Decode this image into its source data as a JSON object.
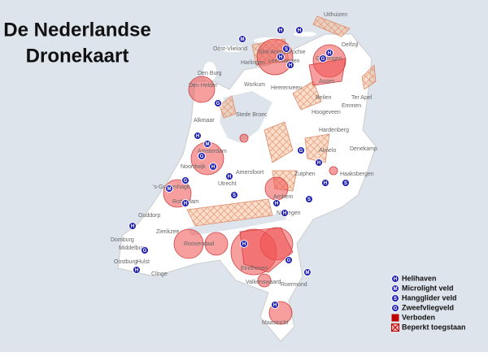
{
  "header": {
    "title": [
      "De Nederlandse",
      "Dronekaart"
    ]
  },
  "cities": [
    "Uithuizen",
    "Delfzijl",
    "Oost-Vlieland",
    "Sint-Annaparochie",
    "Harlingen",
    "Leeuwarden",
    "Groningen",
    "Den Burg",
    "Den Helder",
    "Workum",
    "Heerenveen",
    "Assen",
    "Beilen",
    "Ter Apel",
    "Emmen",
    "Hoogeveen",
    "Alkmaar",
    "Stede Broec",
    "Hardenberg",
    "Almelo",
    "Denekamp",
    "Amsterdam",
    "Noordwijk",
    "Amersfoort",
    "Zutphen",
    "Haaksbergen",
    "Utrecht",
    "'s-Gravenhage",
    "Rotterdam",
    "Arnhem",
    "Nijmegen",
    "Ouddorp",
    "Zierikzee",
    "Domburg",
    "Middelburg",
    "Roosendaal",
    "Oostburg",
    "Hulst",
    "Clinge",
    "Eindhoven",
    "Valkenswaard",
    "Roermond",
    "Maastricht"
  ],
  "legend": {
    "items": [
      {
        "symbol": "H",
        "label": "Helihaven"
      },
      {
        "symbol": "M",
        "label": "Microlight veld"
      },
      {
        "symbol": "S",
        "label": "Hangglider veld"
      },
      {
        "symbol": "G",
        "label": "Zweefvliegveld"
      },
      {
        "label": "Verboden"
      },
      {
        "label": "Beperkt toegstaan"
      }
    ]
  }
}
